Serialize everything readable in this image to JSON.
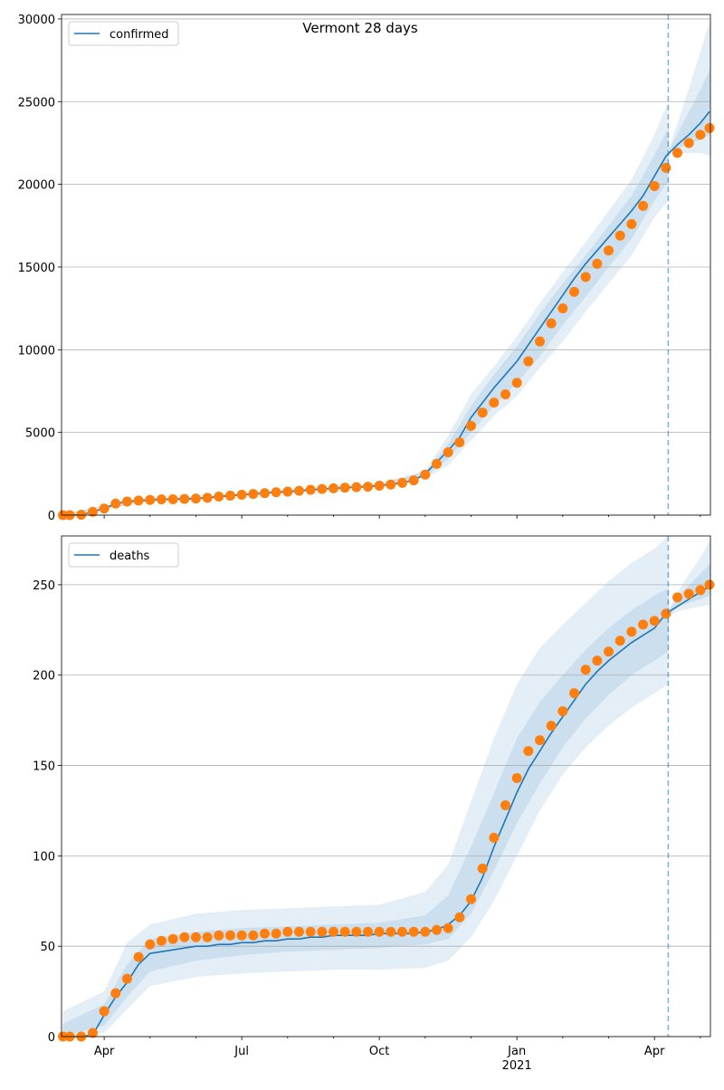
{
  "chart_data": [
    {
      "type": "line",
      "title": "Vermont 28 days",
      "x": [
        3.1,
        3.25,
        3.5,
        3.75,
        4,
        4.25,
        4.5,
        4.75,
        5,
        5.25,
        5.5,
        5.75,
        6,
        6.25,
        6.5,
        6.75,
        7,
        7.25,
        7.5,
        7.75,
        8,
        8.25,
        8.5,
        8.75,
        9,
        9.25,
        9.5,
        9.75,
        10,
        10.25,
        10.5,
        10.75,
        11,
        11.25,
        11.5,
        11.75,
        12,
        12.25,
        12.5,
        12.75,
        13,
        13.25,
        13.5,
        13.75,
        14,
        14.25,
        14.5,
        14.75,
        15,
        15.25,
        15.5,
        15.75,
        16,
        16.25,
        16.5,
        16.75,
        17,
        17.2
      ],
      "xlim": [
        3.07,
        17.22
      ],
      "xticks": [
        {
          "value": 4,
          "label": "Apr"
        },
        {
          "value": 7,
          "label": "Jul"
        },
        {
          "value": 10,
          "label": "Oct"
        },
        {
          "value": 13,
          "label": "Jan"
        },
        {
          "value": 16,
          "label": "Apr"
        }
      ],
      "xminorticks": [
        5,
        6,
        8,
        9,
        11,
        12,
        14,
        15,
        17
      ],
      "show_xticklabels": false,
      "ylim": [
        0,
        30270
      ],
      "yticks": [
        0,
        5000,
        10000,
        15000,
        20000,
        25000,
        30000
      ],
      "grid": "y",
      "legend": "upper left",
      "vline": {
        "x": 16.3,
        "color": "#1f77b4"
      },
      "series": [
        {
          "name": "confirmed",
          "color": "#1f77b4",
          "style": "line",
          "values": [
            0,
            0,
            20,
            200,
            400,
            700,
            820,
            880,
            920,
            950,
            960,
            980,
            1000,
            1050,
            1120,
            1180,
            1230,
            1280,
            1330,
            1380,
            1420,
            1470,
            1530,
            1580,
            1620,
            1660,
            1690,
            1720,
            1780,
            1850,
            1950,
            2100,
            2500,
            3200,
            3900,
            4700,
            5900,
            6800,
            7700,
            8500,
            9300,
            10300,
            11300,
            12300,
            13300,
            14300,
            15200,
            16000,
            16800,
            17600,
            18400,
            19300,
            20500,
            21700,
            22400,
            23000,
            23700,
            24400
          ]
        },
        {
          "color": "#ff7f0e",
          "style": "markers",
          "values": [
            0,
            0,
            20,
            200,
            400,
            700,
            820,
            880,
            920,
            950,
            960,
            980,
            1000,
            1050,
            1120,
            1180,
            1230,
            1280,
            1330,
            1380,
            1420,
            1470,
            1530,
            1580,
            1620,
            1660,
            1690,
            1720,
            1780,
            1850,
            1950,
            2100,
            2450,
            3100,
            3800,
            4400,
            5400,
            6200,
            6800,
            7300,
            8000,
            9300,
            10500,
            11600,
            12500,
            13500,
            14400,
            15200,
            16000,
            16900,
            17600,
            18700,
            19900,
            21000,
            21900,
            22500,
            23000,
            23400
          ]
        }
      ],
      "bands": {
        "color": "#1f77b4",
        "x": [
          3.1,
          4,
          5,
          6,
          7,
          8,
          9,
          10,
          11,
          11.5,
          12,
          12.5,
          13,
          13.5,
          14,
          14.5,
          15,
          15.5,
          16,
          16.3,
          16.32,
          16.6,
          17,
          17.22
        ],
        "levels": [
          {
            "lower": [
              0,
              300,
              850,
              930,
              1150,
              1350,
              1550,
              1700,
              2200,
              3000,
              4500,
              6000,
              7200,
              8900,
              10500,
              12300,
              14000,
              15700,
              18000,
              19000,
              21800,
              21900,
              21900,
              21700
            ],
            "upper": [
              100,
              600,
              1050,
              1100,
              1350,
              1550,
              1750,
              1950,
              2700,
              4800,
              7300,
              9000,
              10800,
              12800,
              14700,
              16500,
              18400,
              20300,
              23000,
              25000,
              22200,
              24500,
              28000,
              30000
            ]
          },
          {
            "lower": [
              0,
              350,
              880,
              960,
              1200,
              1400,
              1600,
              1750,
              2300,
              3400,
              5000,
              6600,
              8000,
              9600,
              11500,
              13200,
              15000,
              16700,
              19000,
              20200,
              21900,
              22300,
              22700,
              23000
            ],
            "upper": [
              50,
              550,
              1000,
              1060,
              1300,
              1500,
              1700,
              1900,
              2600,
              4300,
              6600,
              8500,
              10200,
              12200,
              14000,
              15700,
              17500,
              19300,
              21800,
              23400,
              22100,
              23600,
              25700,
              27000
            ]
          }
        ]
      }
    },
    {
      "type": "line",
      "x": [
        3.1,
        3.25,
        3.5,
        3.75,
        4,
        4.25,
        4.5,
        4.75,
        5,
        5.25,
        5.5,
        5.75,
        6,
        6.25,
        6.5,
        6.75,
        7,
        7.25,
        7.5,
        7.75,
        8,
        8.25,
        8.5,
        8.75,
        9,
        9.25,
        9.5,
        9.75,
        10,
        10.25,
        10.5,
        10.75,
        11,
        11.25,
        11.5,
        11.75,
        12,
        12.25,
        12.5,
        12.75,
        13,
        13.25,
        13.5,
        13.75,
        14,
        14.25,
        14.5,
        14.75,
        15,
        15.25,
        15.5,
        15.75,
        16,
        16.25,
        16.5,
        16.75,
        17,
        17.2
      ],
      "xlim": [
        3.07,
        17.22
      ],
      "xticks": [
        {
          "value": 4,
          "label": "Apr"
        },
        {
          "value": 7,
          "label": "Jul"
        },
        {
          "value": 10,
          "label": "Oct"
        },
        {
          "value": 13,
          "label": "Jan",
          "sublabel": "2021"
        },
        {
          "value": 16,
          "label": "Apr"
        }
      ],
      "xminorticks": [
        5,
        6,
        8,
        9,
        11,
        12,
        14,
        15,
        17
      ],
      "show_xticklabels": true,
      "ylim": [
        0,
        277
      ],
      "yticks": [
        0,
        50,
        100,
        150,
        200,
        250
      ],
      "grid": "y",
      "legend": "upper left",
      "vline": {
        "x": 16.3,
        "color": "#1f77b4"
      },
      "series": [
        {
          "name": "deaths",
          "color": "#1f77b4",
          "style": "line",
          "values": [
            0,
            0,
            0,
            1,
            12,
            22,
            30,
            40,
            46,
            47,
            48,
            49,
            50,
            50,
            51,
            51,
            52,
            52,
            53,
            53,
            54,
            54,
            55,
            55,
            56,
            56,
            56,
            56,
            57,
            57,
            57,
            57,
            58,
            59,
            62,
            67,
            75,
            88,
            105,
            120,
            135,
            148,
            158,
            168,
            177,
            186,
            195,
            202,
            208,
            213,
            218,
            222,
            226,
            234,
            238,
            242,
            246,
            249
          ]
        },
        {
          "color": "#ff7f0e",
          "style": "markers",
          "values": [
            0,
            0,
            0,
            2,
            14,
            24,
            32,
            44,
            51,
            53,
            54,
            55,
            55,
            55,
            56,
            56,
            56,
            56,
            57,
            57,
            58,
            58,
            58,
            58,
            58,
            58,
            58,
            58,
            58,
            58,
            58,
            58,
            58,
            59,
            60,
            66,
            76,
            93,
            110,
            128,
            143,
            158,
            164,
            172,
            180,
            190,
            203,
            208,
            213,
            219,
            224,
            228,
            230,
            234,
            243,
            245,
            247,
            250
          ]
        }
      ],
      "bands": {
        "color": "#1f77b4",
        "x": [
          3.1,
          4,
          4.5,
          5,
          6,
          7,
          8,
          9,
          10,
          11,
          11.5,
          12,
          12.5,
          13,
          13.5,
          14,
          14.5,
          15,
          15.5,
          16,
          16.3,
          16.32,
          16.6,
          17,
          17.22
        ],
        "levels": [
          {
            "lower": [
              0,
              2,
              15,
              28,
              33,
              35,
              36,
              37,
              37,
              38,
              42,
              55,
              75,
              100,
              125,
              145,
              160,
              172,
              182,
              190,
              195,
              233,
              236,
              238,
              239
            ],
            "upper": [
              14,
              25,
              52,
              62,
              68,
              70,
              71,
              72,
              73,
              80,
              95,
              130,
              165,
              195,
              215,
              228,
              240,
              252,
              262,
              270,
              277,
              237,
              250,
              265,
              275
            ]
          },
          {
            "lower": [
              0,
              6,
              22,
              36,
              42,
              45,
              47,
              48,
              49,
              51,
              54,
              68,
              92,
              118,
              140,
              160,
              176,
              189,
              200,
              208,
              213,
              234,
              239,
              242,
              244
            ],
            "upper": [
              7,
              18,
              40,
              54,
              58,
              60,
              61,
              62,
              63,
              67,
              78,
              105,
              135,
              165,
              185,
              200,
              214,
              226,
              236,
              244,
              248,
              236,
              246,
              256,
              262
            ]
          }
        ]
      }
    }
  ]
}
